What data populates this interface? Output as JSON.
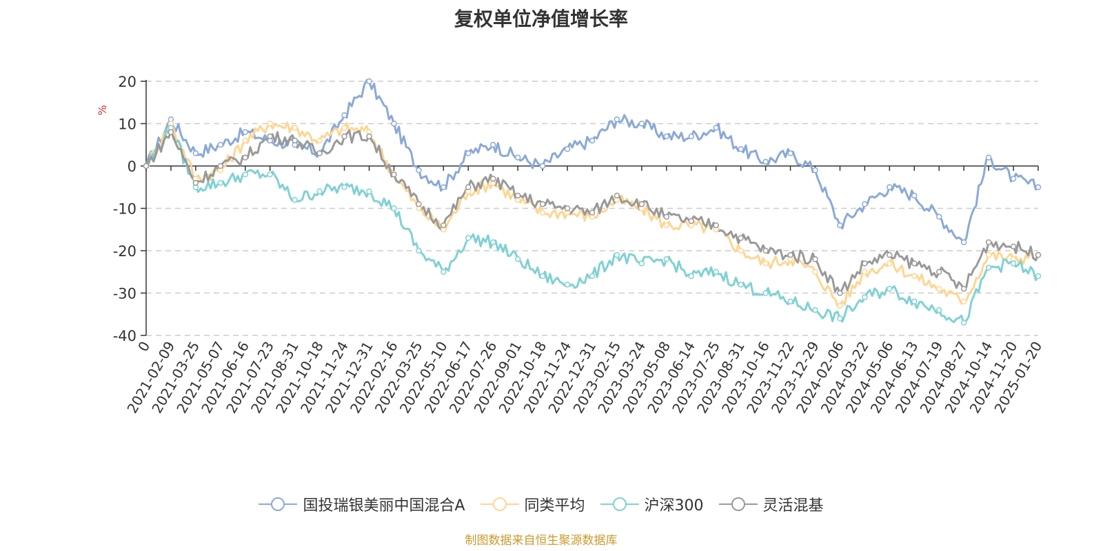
{
  "chart_data": {
    "type": "line",
    "title": "复权单位净值增长率",
    "ylabel": "%",
    "xlabel": "",
    "ylim": [
      -40,
      20
    ],
    "yticks": [
      20,
      10,
      0,
      -10,
      -20,
      -30,
      -40
    ],
    "xtick_labels": [
      "0",
      "2021-02-09",
      "2021-03-25",
      "2021-05-07",
      "2021-06-16",
      "2021-07-23",
      "2021-08-31",
      "2021-10-18",
      "2021-11-24",
      "2021-12-31",
      "2022-02-16",
      "2022-03-25",
      "2022-05-10",
      "2022-06-17",
      "2022-07-26",
      "2022-09-01",
      "2022-10-18",
      "2022-11-24",
      "2022-12-31",
      "2023-02-15",
      "2023-03-24",
      "2023-05-08",
      "2023-06-14",
      "2023-07-25",
      "2023-08-31",
      "2023-10-16",
      "2023-11-22",
      "2023-12-29",
      "2024-02-06",
      "2024-03-22",
      "2024-05-06",
      "2024-06-13",
      "2024-07-19",
      "2024-08-27",
      "2024-10-14",
      "2024-11-20",
      "2025-01-20"
    ],
    "grid": "horizontal-dashed",
    "legend_position": "bottom",
    "series": [
      {
        "name": "国投瑞银美丽中国混合A",
        "color": "#8aa9d6",
        "values": [
          0,
          11,
          3,
          5,
          8,
          6,
          5,
          3,
          12,
          20,
          10,
          -1,
          -5,
          3,
          5,
          2,
          0,
          4,
          6,
          11,
          10,
          7,
          7,
          9,
          4,
          1,
          3,
          -1,
          -14,
          -9,
          -5,
          -7,
          -12,
          -18,
          2,
          -3,
          -5
        ]
      },
      {
        "name": "同类平均",
        "color": "#ffd591",
        "values": [
          0,
          10,
          -3,
          -1,
          6,
          10,
          9,
          6,
          9,
          8,
          -2,
          -10,
          -15,
          -6,
          -4,
          -8,
          -11,
          -11,
          -12,
          -8,
          -10,
          -14,
          -14,
          -15,
          -20,
          -23,
          -22,
          -25,
          -33,
          -25,
          -23,
          -26,
          -29,
          -32,
          -21,
          -22,
          -21
        ]
      },
      {
        "name": "沪深300",
        "color": "#7fd1d4",
        "values": [
          0,
          9,
          -5,
          -4,
          -2,
          -2,
          -8,
          -6,
          -5,
          -6,
          -10,
          -20,
          -25,
          -17,
          -18,
          -22,
          -26,
          -28,
          -26,
          -21,
          -23,
          -22,
          -26,
          -25,
          -28,
          -30,
          -32,
          -34,
          -36,
          -31,
          -29,
          -32,
          -34,
          -37,
          -24,
          -23,
          -26
        ]
      },
      {
        "name": "灵活混基",
        "color": "#999999",
        "values": [
          0,
          8,
          -4,
          0,
          2,
          7,
          6,
          3,
          7,
          7,
          -2,
          -9,
          -14,
          -5,
          -3,
          -7,
          -9,
          -10,
          -11,
          -7,
          -9,
          -12,
          -13,
          -14,
          -17,
          -20,
          -21,
          -22,
          -30,
          -23,
          -21,
          -23,
          -25,
          -29,
          -18,
          -19,
          -21
        ]
      }
    ]
  },
  "source_text": "制图数据来自恒生聚源数据库"
}
